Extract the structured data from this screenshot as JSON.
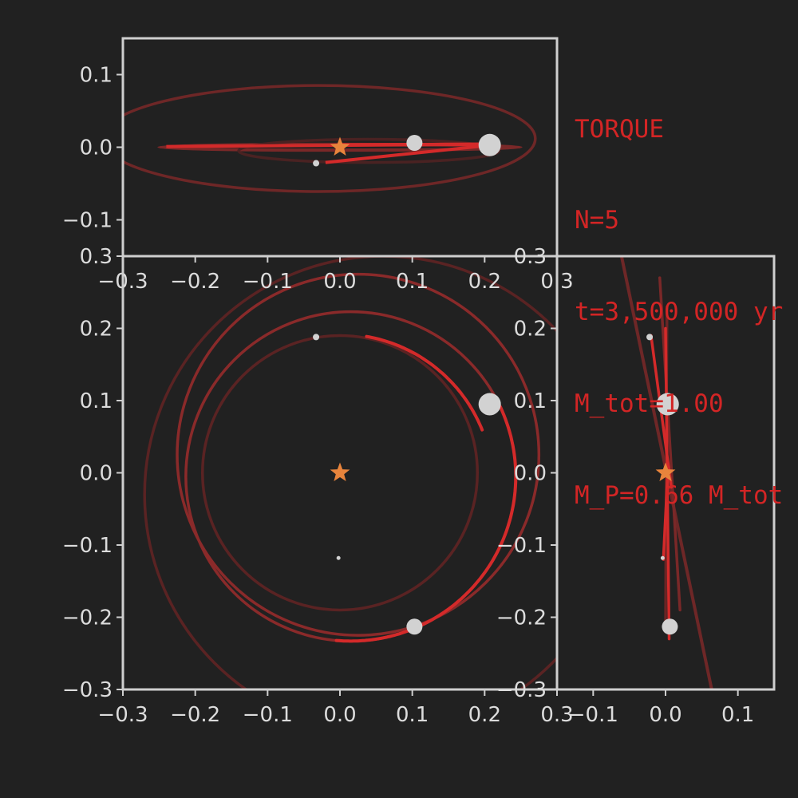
{
  "chart_data": {
    "type": "scatter",
    "description_free": true,
    "colors": {
      "background": "#212121",
      "axes": "#cfcfcf",
      "tick_text": "#dcdcdc",
      "orbit_recent": "#d42a2a",
      "orbit_old": "#8a2a2a",
      "planet": "#d2d2d2",
      "star": "#e8843c",
      "info_text": "#d32525"
    },
    "info": {
      "line1": "TORQUE",
      "line2": "N=5",
      "line3": "t=3,500,000 yr",
      "line4": "M_tot=1.00",
      "line5": "M_P=0.66 M_tot"
    },
    "panels": [
      {
        "id": "xz",
        "view": "top",
        "xlim": [
          -0.3,
          0.3
        ],
        "ylim": [
          -0.15,
          0.15
        ],
        "xticks": [
          "−0.3",
          "−0.2",
          "−0.1",
          "0.0",
          "0.1",
          "0.2",
          "0.3"
        ],
        "yticks": [
          "−0.1",
          "0.0",
          "0.1"
        ]
      },
      {
        "id": "xy",
        "view": "main",
        "xlim": [
          -0.3,
          0.3
        ],
        "ylim": [
          -0.3,
          0.3
        ],
        "xticks": [
          "−0.3",
          "−0.2",
          "−0.1",
          "0.0",
          "0.1",
          "0.2",
          "0.3"
        ],
        "yticks": [
          "−0.3",
          "−0.2",
          "−0.1",
          "0.0",
          "0.1",
          "0.2",
          "0.3"
        ]
      },
      {
        "id": "zy",
        "view": "side",
        "xlim": [
          -0.15,
          0.15
        ],
        "ylim": [
          -0.3,
          0.3
        ],
        "xticks": [
          "−0.1",
          "0.0",
          "0.1"
        ],
        "yticks": [
          "−0.3",
          "−0.2",
          "−0.1",
          "0.0",
          "0.1",
          "0.2",
          "0.3"
        ]
      }
    ],
    "star": {
      "x": 0.0,
      "y": 0.0,
      "z": 0.0
    },
    "bodies": [
      {
        "x": 0.207,
        "y": 0.095,
        "z": 0.003,
        "mass": "large"
      },
      {
        "x": 0.103,
        "y": -0.213,
        "z": 0.006,
        "mass": "medium"
      },
      {
        "x": -0.033,
        "y": 0.188,
        "z": -0.022,
        "mass": "small"
      },
      {
        "x": -0.002,
        "y": -0.118,
        "z": -0.004,
        "mass": "tiny"
      }
    ],
    "orbits_xy": [
      {
        "cx": 0.0,
        "cy": 0.0,
        "rx": 0.19,
        "ry": 0.19,
        "trail": "faint"
      },
      {
        "cx": 0.015,
        "cy": -0.005,
        "rx": 0.228,
        "ry": 0.228,
        "trail": "medium"
      },
      {
        "cx": 0.025,
        "cy": 0.025,
        "rx": 0.25,
        "ry": 0.25,
        "trail": "medium"
      },
      {
        "cx": 0.06,
        "cy": -0.03,
        "rx": 0.33,
        "ry": 0.33,
        "trail": "faint"
      }
    ]
  }
}
